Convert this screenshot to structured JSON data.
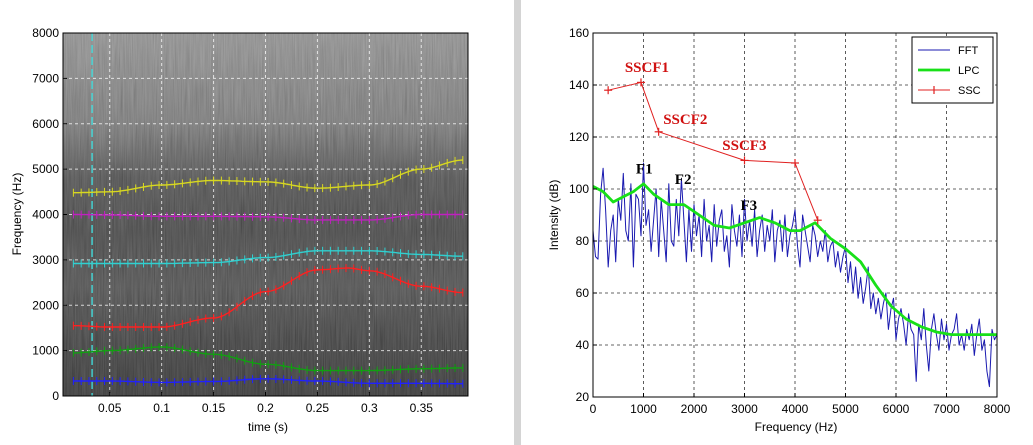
{
  "chart_data": [
    {
      "type": "heatmap",
      "xlabel": "time (s)",
      "ylabel": "Frequency (Hz)",
      "xlim": [
        0.005,
        0.395
      ],
      "ylim": [
        0,
        8000
      ],
      "x_ticks": [
        0.05,
        0.1,
        0.15,
        0.2,
        0.25,
        0.3,
        0.35
      ],
      "x_tick_labels": [
        "0.05",
        "0.1",
        "0.15",
        "0.2",
        "0.25",
        "0.3",
        "0.35"
      ],
      "y_ticks": [
        0,
        1000,
        2000,
        3000,
        4000,
        5000,
        6000,
        7000,
        8000
      ],
      "y_tick_labels": [
        "0",
        "1000",
        "2000",
        "3000",
        "4000",
        "5000",
        "6000",
        "7000",
        "8000"
      ],
      "grid": true,
      "cursor_time": 0.033,
      "tracks": [
        {
          "color": "#2020ff",
          "x": [
            0.015,
            0.05,
            0.1,
            0.15,
            0.2,
            0.25,
            0.3,
            0.35,
            0.39
          ],
          "y": [
            330,
            330,
            300,
            320,
            380,
            330,
            280,
            280,
            270
          ]
        },
        {
          "color": "#10a010",
          "x": [
            0.015,
            0.05,
            0.1,
            0.15,
            0.2,
            0.25,
            0.3,
            0.35,
            0.39
          ],
          "y": [
            950,
            1000,
            1080,
            920,
            700,
            560,
            560,
            600,
            620
          ]
        },
        {
          "color": "#ff2020",
          "x": [
            0.015,
            0.05,
            0.1,
            0.15,
            0.2,
            0.25,
            0.28,
            0.3,
            0.35,
            0.39
          ],
          "y": [
            1550,
            1520,
            1520,
            1720,
            2300,
            2780,
            2820,
            2760,
            2420,
            2280
          ]
        },
        {
          "color": "#30d0d0",
          "x": [
            0.015,
            0.05,
            0.1,
            0.15,
            0.2,
            0.25,
            0.3,
            0.35,
            0.39
          ],
          "y": [
            2920,
            2920,
            2920,
            2940,
            3050,
            3200,
            3200,
            3120,
            3080
          ]
        },
        {
          "color": "#c020c0",
          "x": [
            0.015,
            0.05,
            0.1,
            0.15,
            0.2,
            0.25,
            0.3,
            0.35,
            0.39
          ],
          "y": [
            4000,
            3990,
            3960,
            3960,
            3950,
            3880,
            3880,
            4000,
            4000
          ]
        },
        {
          "color": "#d8d820",
          "x": [
            0.015,
            0.05,
            0.1,
            0.15,
            0.2,
            0.25,
            0.3,
            0.35,
            0.39
          ],
          "y": [
            4480,
            4500,
            4650,
            4750,
            4720,
            4580,
            4650,
            5000,
            5200
          ]
        }
      ]
    },
    {
      "type": "line",
      "xlabel": "Frequency (Hz)",
      "ylabel": "Intensity (dB)",
      "xlim": [
        0,
        8000
      ],
      "ylim": [
        20,
        160
      ],
      "x_ticks": [
        0,
        1000,
        2000,
        3000,
        4000,
        5000,
        6000,
        7000,
        8000
      ],
      "x_tick_labels": [
        "0",
        "1000",
        "2000",
        "3000",
        "4000",
        "5000",
        "6000",
        "7000",
        "8000"
      ],
      "y_ticks": [
        20,
        40,
        60,
        80,
        100,
        120,
        140,
        160
      ],
      "y_tick_labels": [
        "20",
        "40",
        "60",
        "80",
        "100",
        "120",
        "140",
        "160"
      ],
      "grid": true,
      "legend_position": "top-right",
      "series": [
        {
          "name": "FFT",
          "color": "#1a1ab0",
          "x": [
            0,
            50,
            100,
            150,
            200,
            250,
            300,
            350,
            400,
            450,
            500,
            550,
            600,
            650,
            700,
            750,
            800,
            850,
            900,
            950,
            1000,
            1050,
            1100,
            1150,
            1200,
            1250,
            1300,
            1350,
            1400,
            1450,
            1500,
            1550,
            1600,
            1650,
            1700,
            1750,
            1800,
            1850,
            1900,
            1950,
            2000,
            2050,
            2100,
            2150,
            2200,
            2250,
            2300,
            2350,
            2400,
            2450,
            2500,
            2550,
            2600,
            2650,
            2700,
            2750,
            2800,
            2850,
            2900,
            2950,
            3000,
            3050,
            3100,
            3150,
            3200,
            3250,
            3300,
            3350,
            3400,
            3450,
            3500,
            3550,
            3600,
            3650,
            3700,
            3750,
            3800,
            3850,
            3900,
            3950,
            4000,
            4050,
            4100,
            4150,
            4200,
            4250,
            4300,
            4350,
            4400,
            4450,
            4500,
            4550,
            4600,
            4650,
            4700,
            4750,
            4800,
            4850,
            4900,
            4950,
            5000,
            5050,
            5100,
            5150,
            5200,
            5250,
            5300,
            5350,
            5400,
            5450,
            5500,
            5550,
            5600,
            5650,
            5700,
            5750,
            5800,
            5850,
            5900,
            5950,
            6000,
            6050,
            6100,
            6150,
            6200,
            6250,
            6300,
            6350,
            6400,
            6450,
            6500,
            6550,
            6600,
            6650,
            6700,
            6750,
            6800,
            6850,
            6900,
            6950,
            7000,
            7050,
            7100,
            7150,
            7200,
            7250,
            7300,
            7350,
            7400,
            7450,
            7500,
            7550,
            7600,
            7650,
            7700,
            7750,
            7800,
            7850,
            7900,
            7950,
            8000
          ],
          "y": [
            84,
            74,
            73,
            98,
            108,
            92,
            70,
            84,
            90,
            72,
            96,
            88,
            106,
            84,
            80,
            102,
            70,
            98,
            96,
            82,
            110,
            86,
            92,
            76,
            88,
            100,
            74,
            96,
            84,
            72,
            102,
            80,
            78,
            96,
            82,
            104,
            88,
            72,
            92,
            76,
            94,
            82,
            90,
            74,
            96,
            80,
            86,
            72,
            94,
            78,
            88,
            92,
            76,
            82,
            70,
            94,
            84,
            78,
            90,
            74,
            96,
            80,
            88,
            78,
            92,
            74,
            84,
            90,
            76,
            86,
            80,
            92,
            72,
            84,
            88,
            76,
            90,
            74,
            82,
            86,
            92,
            78,
            70,
            90,
            84,
            78,
            72,
            86,
            82,
            74,
            80,
            76,
            84,
            72,
            78,
            80,
            70,
            76,
            68,
            74,
            78,
            64,
            72,
            60,
            70,
            58,
            66,
            56,
            62,
            70,
            54,
            60,
            52,
            58,
            50,
            56,
            60,
            46,
            54,
            58,
            42,
            50,
            54,
            48,
            40,
            52,
            46,
            44,
            26,
            48,
            42,
            54,
            40,
            30,
            46,
            52,
            44,
            38,
            50,
            42,
            48,
            38,
            44,
            46,
            52,
            40,
            44,
            38,
            46,
            42,
            48,
            36,
            44,
            50,
            38,
            42,
            30,
            24,
            46,
            42,
            44
          ]
        },
        {
          "name": "LPC",
          "color": "#18e018",
          "x": [
            0,
            200,
            400,
            600,
            800,
            1000,
            1200,
            1500,
            1800,
            2100,
            2400,
            2700,
            3000,
            3300,
            3600,
            3900,
            4100,
            4400,
            4700,
            5000,
            5300,
            5600,
            5900,
            6200,
            6500,
            6800,
            7100,
            7400,
            7700,
            8000
          ],
          "y": [
            101,
            99,
            95,
            97,
            99,
            102,
            98,
            94,
            94,
            90,
            86,
            85,
            87,
            89,
            87,
            84,
            84,
            87,
            81,
            77,
            72,
            63,
            55,
            50,
            47,
            45,
            44,
            44,
            44,
            44
          ]
        },
        {
          "name": "SSC",
          "color": "#e02020",
          "x": [
            300,
            950,
            1300,
            3000,
            4000,
            4450
          ],
          "y": [
            138,
            141,
            122,
            111,
            110,
            88
          ]
        }
      ],
      "annotations": [
        {
          "text": "SSCF1",
          "color": "red",
          "x": 630,
          "y": 145
        },
        {
          "text": "SSCF2",
          "color": "red",
          "x": 1390,
          "y": 125
        },
        {
          "text": "SSCF3",
          "color": "red",
          "x": 2560,
          "y": 115
        },
        {
          "text": "F1",
          "color": "black",
          "x": 850,
          "y": 106
        },
        {
          "text": "F2",
          "color": "black",
          "x": 1620,
          "y": 102
        },
        {
          "text": "F3",
          "color": "black",
          "x": 2920,
          "y": 92
        }
      ]
    }
  ]
}
